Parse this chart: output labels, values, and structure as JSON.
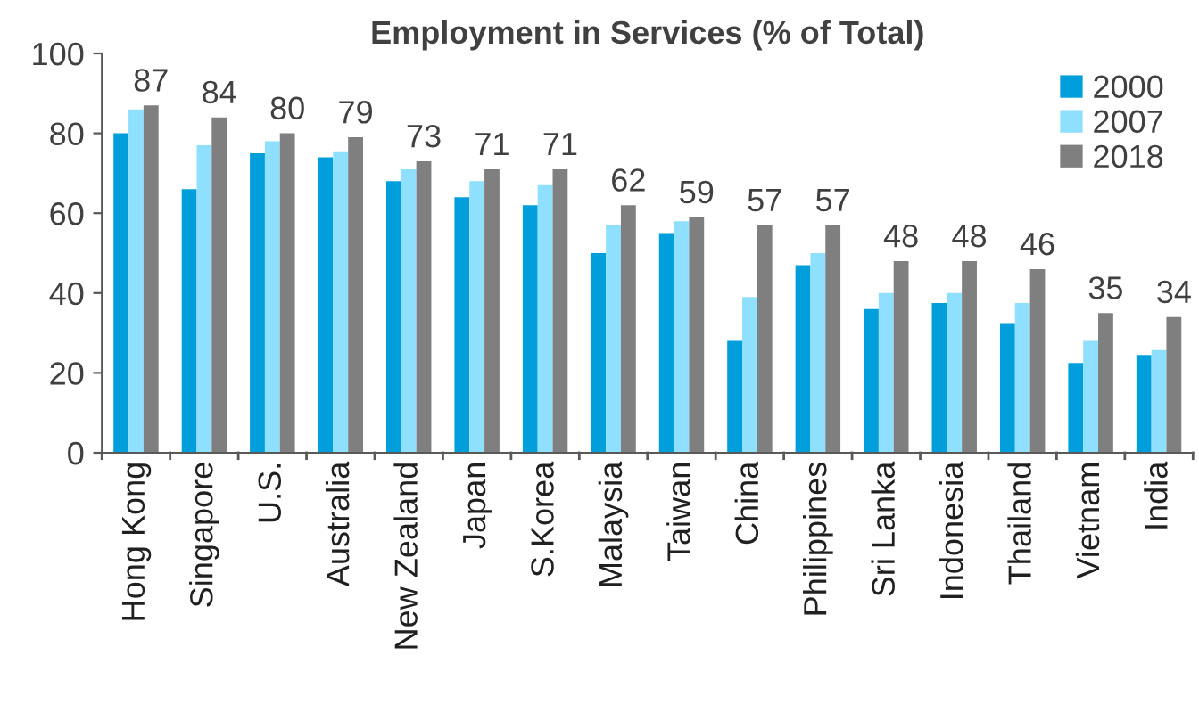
{
  "chart_data": {
    "type": "bar",
    "title": "Employment in Services (% of Total)",
    "categories": [
      "Hong Kong",
      "Singapore",
      "U.S.",
      "Australia",
      "New Zealand",
      "Japan",
      "S.Korea",
      "Malaysia",
      "Taiwan",
      "China",
      "Philippines",
      "Sri Lanka",
      "Indonesia",
      "Thailand",
      "Vietnam",
      "India"
    ],
    "series": [
      {
        "name": "2000",
        "color": "#009fdb",
        "values": [
          80,
          66,
          75,
          74,
          68,
          64,
          62,
          50,
          55,
          28,
          47,
          36,
          37.5,
          32.5,
          22.5,
          24.5
        ]
      },
      {
        "name": "2007",
        "color": "#8fdfff",
        "values": [
          86,
          77,
          78,
          75.5,
          71,
          68,
          67,
          57,
          58,
          39,
          50,
          40,
          40,
          37.5,
          28,
          25.7
        ]
      },
      {
        "name": "2018",
        "color": "#7f7f7f",
        "values": [
          87,
          84,
          80,
          79,
          73,
          71,
          71,
          62,
          59,
          57,
          57,
          48,
          48,
          46,
          35,
          34
        ],
        "value_labels": [
          "87",
          "84",
          "80",
          "79",
          "73",
          "71",
          "71",
          "62",
          "59",
          "57",
          "57",
          "48",
          "48",
          "46",
          "35",
          "34"
        ]
      }
    ],
    "ylim": [
      0,
      100
    ],
    "yticks": [
      0,
      20,
      40,
      60,
      80,
      100
    ],
    "grid": false,
    "legend": "top right"
  }
}
